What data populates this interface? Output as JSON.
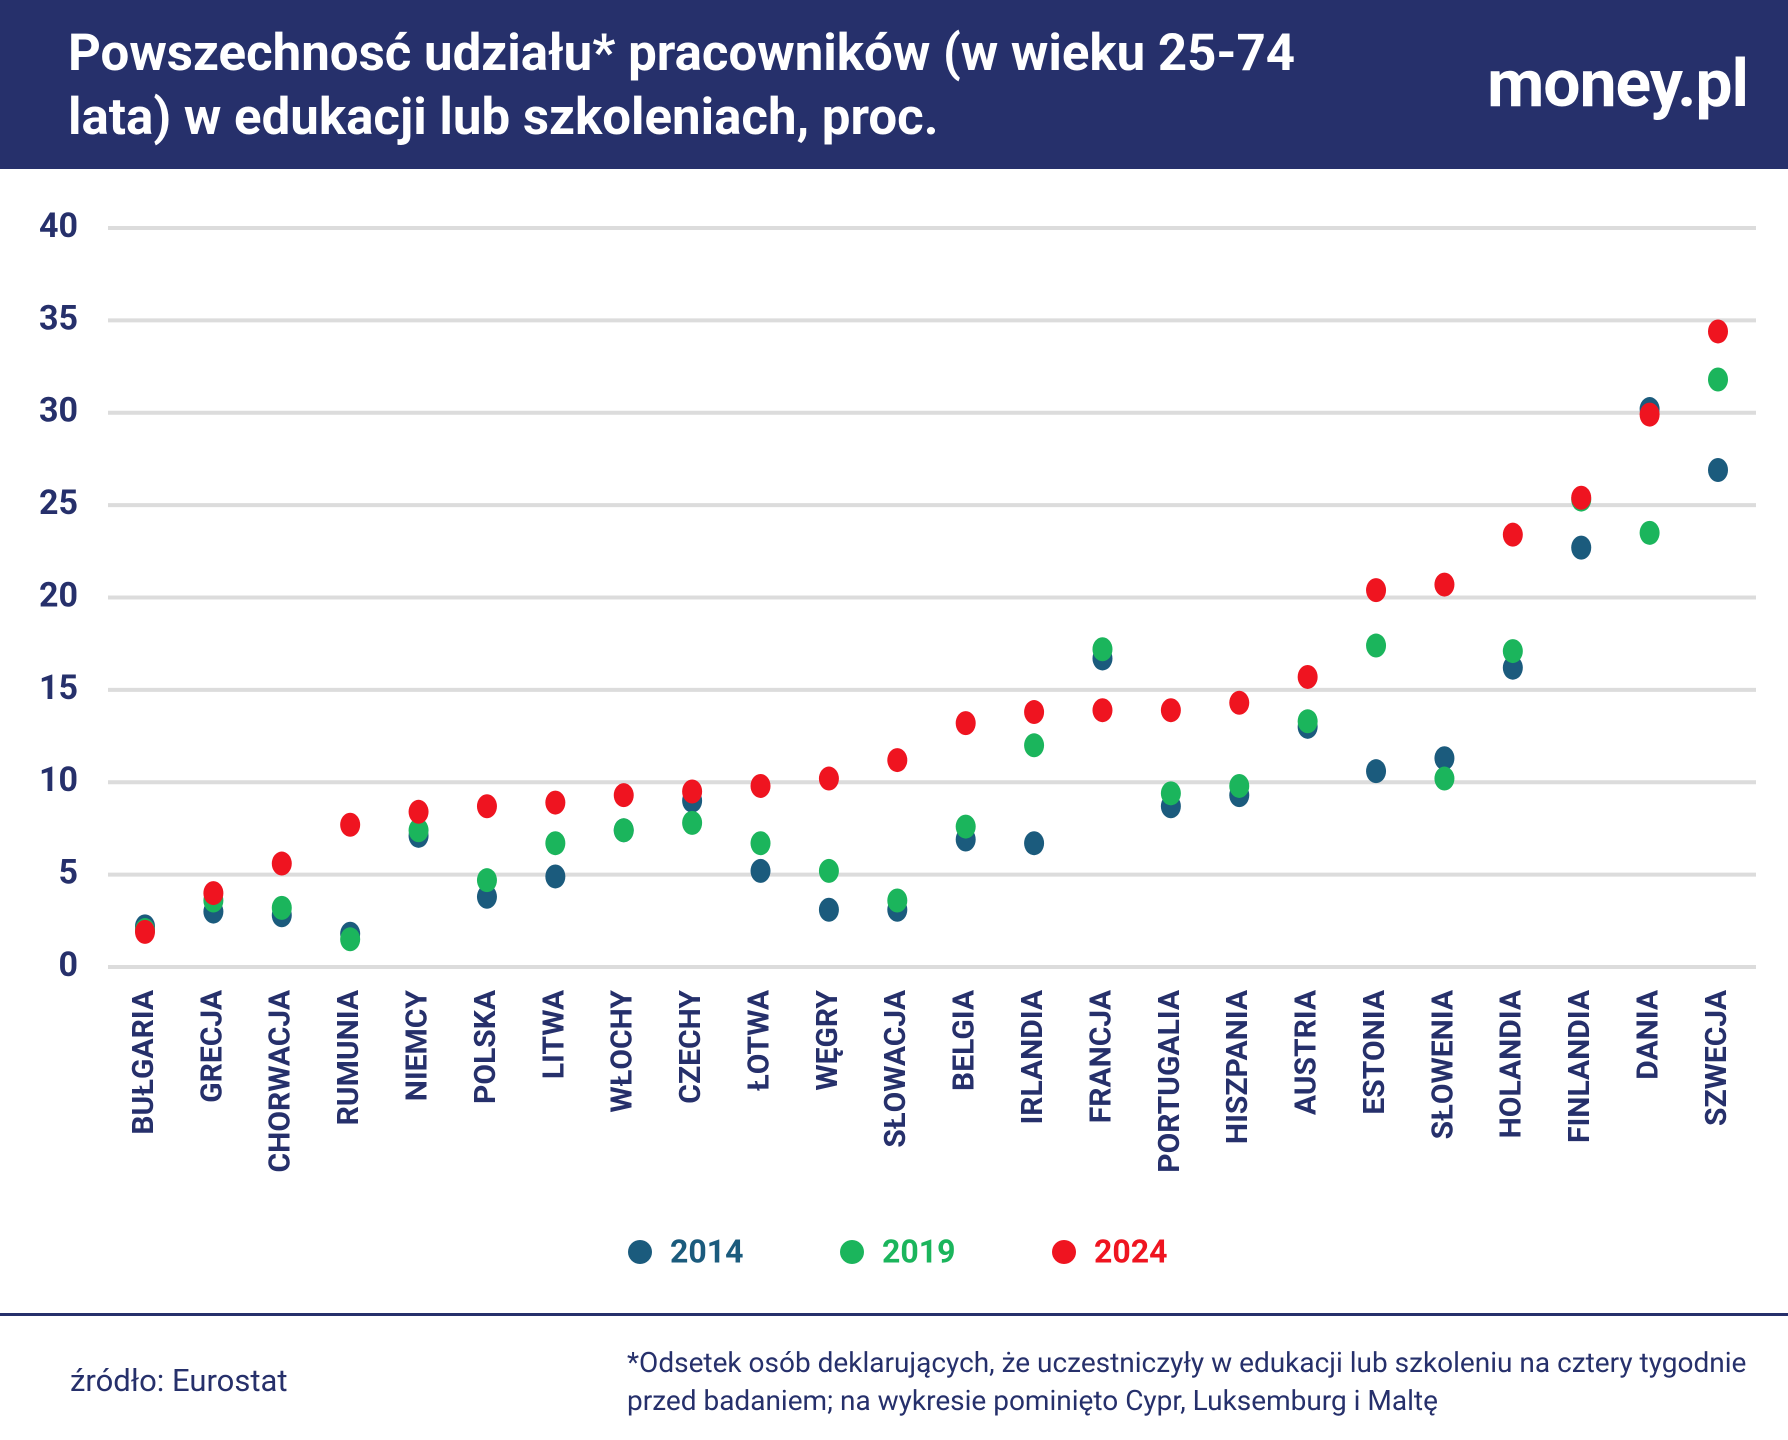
{
  "chart_data": {
    "type": "scatter",
    "title": "Powszechnosć udziału* pracowników (w wieku 25-74 lata) w edukacji lub szkoleniach, proc.",
    "logo": "money.pl",
    "source": "źródło: Eurostat",
    "footnote": "*Odsetek osób deklarujących, że uczestniczyły w edukacji lub szkoleniu na cztery tygodnie przed badaniem; na wykresie pominięto Cypr, Luksemburg i Maltę",
    "categories": [
      "BUŁGARIA",
      "GRECJA",
      "CHORWACJA",
      "RUMUNIA",
      "NIEMCY",
      "POLSKA",
      "LITWA",
      "WŁOCHY",
      "CZECHY",
      "ŁOTWA",
      "WĘGRY",
      "SŁOWACJA",
      "BELGIA",
      "IRLANDIA",
      "FRANCJA",
      "PORTUGALIA",
      "HISZPANIA",
      "AUSTRIA",
      "ESTONIA",
      "SŁOWENIA",
      "HOLANDIA",
      "FINLANDIA",
      "DANIA",
      "SZWECJA"
    ],
    "series": [
      {
        "name": "2014",
        "color": "#1b5b7d",
        "values": [
          2.2,
          3.0,
          2.8,
          1.8,
          7.1,
          3.8,
          4.9,
          7.4,
          9.0,
          5.2,
          3.1,
          3.1,
          6.9,
          6.7,
          16.7,
          8.7,
          9.3,
          13.0,
          10.6,
          11.3,
          16.2,
          22.7,
          30.2,
          26.9
        ]
      },
      {
        "name": "2019",
        "color": "#1bb55c",
        "values": [
          2.0,
          3.6,
          3.2,
          1.5,
          7.4,
          4.7,
          6.7,
          7.4,
          7.8,
          6.7,
          5.2,
          3.6,
          7.6,
          12.0,
          17.2,
          9.4,
          9.8,
          13.3,
          17.4,
          10.2,
          17.1,
          25.3,
          23.5,
          31.8
        ]
      },
      {
        "name": "2024",
        "color": "#ef1420",
        "values": [
          1.9,
          4.0,
          5.6,
          7.7,
          8.4,
          8.7,
          8.9,
          9.3,
          9.5,
          9.8,
          10.2,
          11.2,
          13.2,
          13.8,
          13.9,
          13.9,
          14.3,
          15.7,
          20.4,
          20.7,
          23.4,
          25.4,
          29.9,
          34.4
        ]
      }
    ],
    "ylim": [
      0,
      40
    ],
    "yticks": [
      0,
      5,
      10,
      15,
      20,
      25,
      30,
      35,
      40
    ],
    "grid": true
  }
}
